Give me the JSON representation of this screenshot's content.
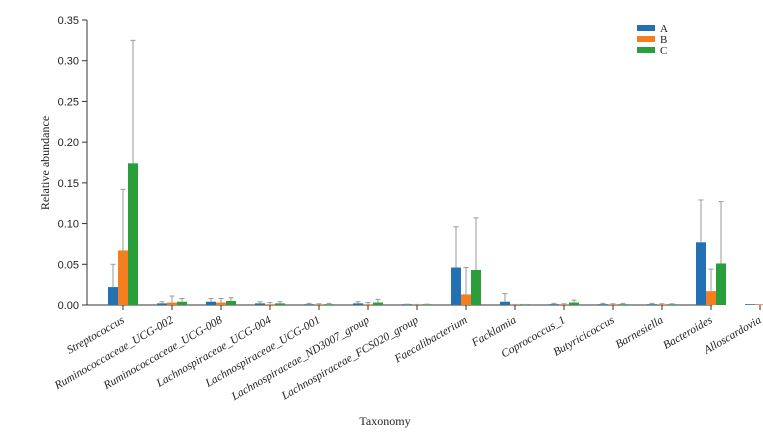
{
  "chart_data": {
    "type": "bar",
    "xlabel": "Taxonomy",
    "ylabel": "Relative abundance",
    "ylim": [
      0,
      0.35
    ],
    "yticks": [
      "0.00",
      "0.05",
      "0.10",
      "0.15",
      "0.20",
      "0.25",
      "0.30",
      "0.35"
    ],
    "legend_position": "top-right",
    "error_bars": true,
    "categories": [
      "Streptococcus",
      "Ruminococcaceae_UCG-002",
      "Ruminococcaceae_UCG-008",
      "Lachnospiraceae_UCG-004",
      "Lachnospiraceae_UCG-001",
      "Lachnospiraceae_ND3007_group",
      "Lachnospiraceae_FCS020_group",
      "Faecalibacterium",
      "Facklamia",
      "Coprococcus_1",
      "Butyricicoccus",
      "Barnesiella",
      "Bacteroides",
      "Alloscardovia"
    ],
    "series": [
      {
        "name": "A",
        "color": "#2371b2",
        "values": [
          0.022,
          0.002,
          0.004,
          0.002,
          0.001,
          0.002,
          0.0005,
          0.046,
          0.004,
          0.001,
          0.001,
          0.001,
          0.077,
          0.0
        ],
        "errors": [
          0.028,
          0.002,
          0.004,
          0.002,
          0.001,
          0.002,
          0.0005,
          0.05,
          0.01,
          0.001,
          0.001,
          0.001,
          0.052,
          0.0
        ]
      },
      {
        "name": "B",
        "color": "#f47f20",
        "values": [
          0.067,
          0.003,
          0.003,
          0.001,
          0.0005,
          0.001,
          0.0002,
          0.013,
          0.0002,
          0.0005,
          0.0005,
          0.0005,
          0.017,
          0.0
        ],
        "errors": [
          0.075,
          0.008,
          0.005,
          0.002,
          0.001,
          0.002,
          0.0005,
          0.033,
          0.0005,
          0.001,
          0.001,
          0.001,
          0.027,
          0.0
        ]
      },
      {
        "name": "C",
        "color": "#2a9e3a",
        "values": [
          0.174,
          0.004,
          0.005,
          0.002,
          0.001,
          0.003,
          0.0005,
          0.043,
          0.0002,
          0.003,
          0.001,
          0.0005,
          0.051,
          0.0002
        ],
        "errors": [
          0.151,
          0.004,
          0.004,
          0.002,
          0.001,
          0.004,
          0.0005,
          0.064,
          0.0005,
          0.003,
          0.001,
          0.001,
          0.076,
          0.0005
        ]
      }
    ]
  }
}
